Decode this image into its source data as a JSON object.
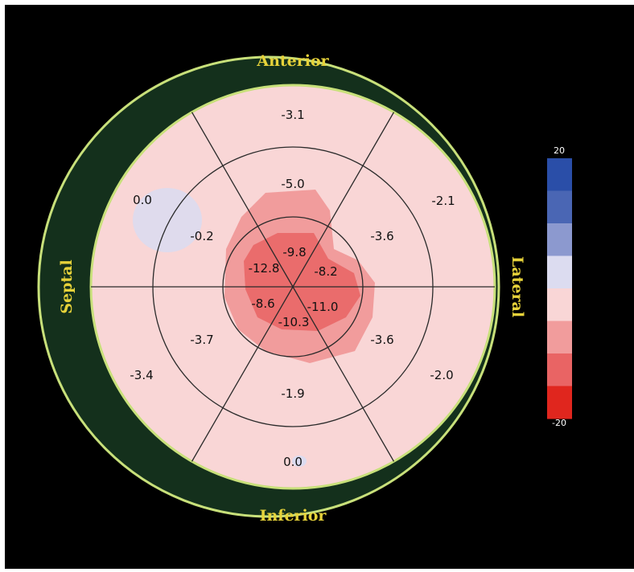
{
  "orientation": {
    "anterior": "Anterior",
    "inferior": "Inferior",
    "septal": "Septal",
    "lateral": "Lateral"
  },
  "segments": {
    "basal_anterior": "-3.1",
    "basal_anterolateral": "-2.1",
    "basal_inferolateral": "-2.0",
    "basal_inferior": "0.0",
    "basal_inferoseptal": "-3.4",
    "basal_anteroseptal": "0.0",
    "mid_anterior": "-5.0",
    "mid_anterolateral": "-3.6",
    "mid_inferolateral": "-3.6",
    "mid_inferior": "-1.9",
    "mid_inferoseptal": "-3.7",
    "mid_anteroseptal": "-0.2",
    "apical_anterior": "-9.8",
    "apical_lateral": "-8.2",
    "apical_lateral_inferior": "-11.0",
    "apical_inferior": "-10.3",
    "apical_septal_inferior": "-8.6",
    "apical_septal": "-12.8"
  },
  "color_scale": {
    "max_label": "20",
    "min_label": "-20",
    "colors": [
      "#2a4ea8",
      "#4a66b4",
      "#8c99cf",
      "#dcdcf0",
      "#f9d6d6",
      "#f19c9c",
      "#e96464",
      "#e0261e"
    ]
  },
  "colors": {
    "background": "#000000",
    "outline": "#c8e07a",
    "septal_crescent": "#14301c",
    "base_tissue": "#f9d6d6"
  }
}
